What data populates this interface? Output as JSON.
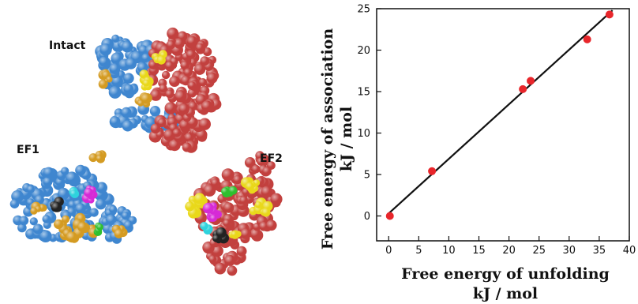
{
  "molecules": {
    "labels": [
      "Intact",
      "EF1",
      "EF2"
    ],
    "colors": {
      "blue": "#3f86cf",
      "red": "#c2403e",
      "gold": "#d49b22",
      "yellow": "#e9d81a",
      "green": "#2fbf2f",
      "magenta": "#d62ad6",
      "cyan": "#2ed3dd",
      "black": "#222222"
    }
  },
  "chart_data": {
    "type": "scatter",
    "xlabel_lines": [
      "Free energy of unfolding",
      "kJ / mol"
    ],
    "ylabel_lines": [
      "Free energy of association",
      "kJ / mol"
    ],
    "xlim": [
      -2,
      40
    ],
    "ylim": [
      -3,
      25
    ],
    "xticks": [
      0,
      5,
      10,
      15,
      20,
      25,
      30,
      35,
      40
    ],
    "yticks": [
      0,
      5,
      10,
      15,
      20,
      25
    ],
    "points": [
      {
        "x": 0.2,
        "y": 0.0
      },
      {
        "x": 7.2,
        "y": 5.4
      },
      {
        "x": 22.3,
        "y": 15.3
      },
      {
        "x": 23.6,
        "y": 16.3
      },
      {
        "x": 33.0,
        "y": 21.3
      },
      {
        "x": 36.7,
        "y": 24.3
      }
    ],
    "fit_line": {
      "x": [
        0,
        37.2
      ],
      "y": [
        0.3,
        24.8
      ]
    },
    "point_color": "#e8262b",
    "line_color": "#111111"
  }
}
